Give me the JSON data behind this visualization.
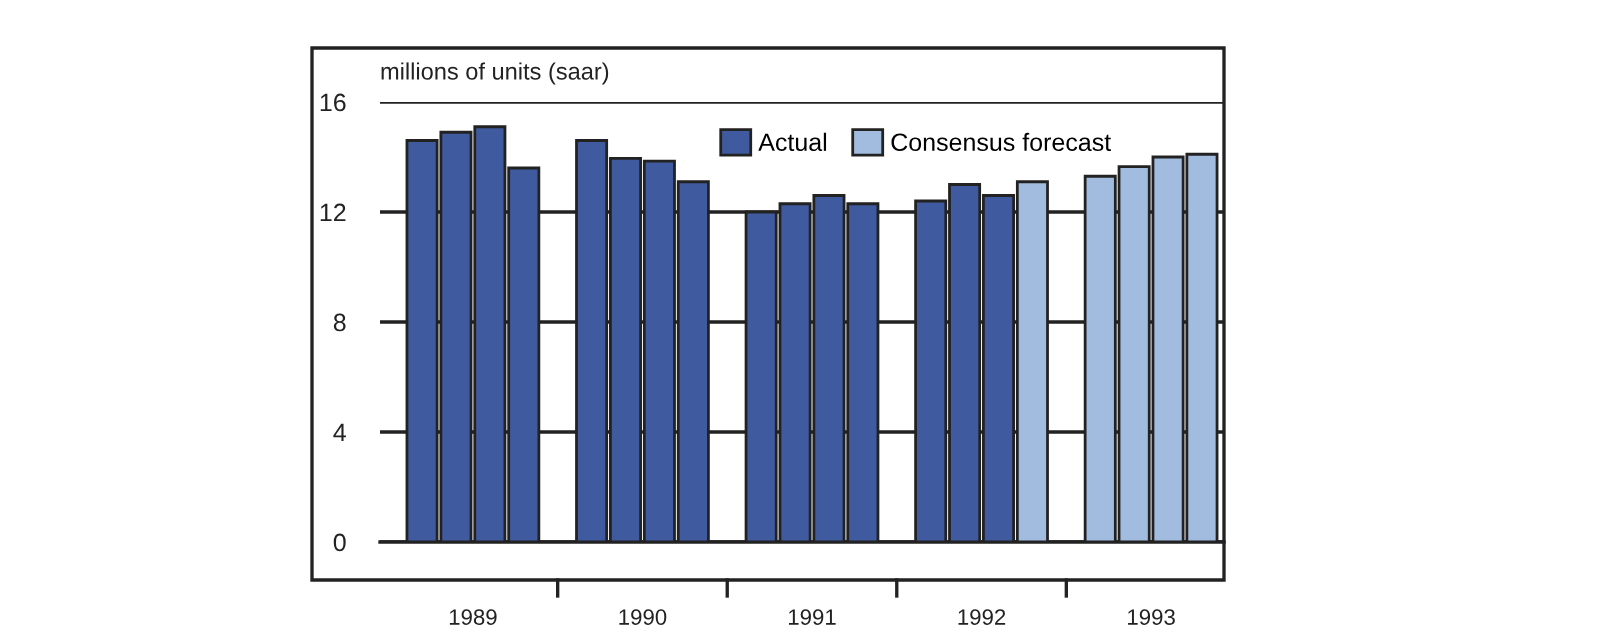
{
  "chart_data": {
    "type": "bar",
    "ylabel": "millions of units (saar)",
    "categories": [
      null,
      "1989",
      null,
      null,
      null,
      null,
      "1990",
      null,
      null,
      null,
      null,
      "1991",
      null,
      null,
      null,
      null,
      "1992",
      null,
      null,
      null,
      null,
      "1993",
      null,
      null
    ],
    "series": [
      {
        "name": "Actual",
        "color": "#3f5a9f",
        "values": [
          14.6,
          14.9,
          15.1,
          13.6,
          null,
          14.6,
          13.95,
          13.85,
          13.1,
          null,
          12.0,
          12.3,
          12.6,
          12.3,
          null,
          12.4,
          13.0,
          12.6,
          null,
          null,
          null,
          null,
          null,
          null
        ]
      },
      {
        "name": "Consensus forecast",
        "color": "#a2bce0",
        "values": [
          null,
          null,
          null,
          null,
          null,
          null,
          null,
          null,
          null,
          null,
          null,
          null,
          null,
          null,
          null,
          null,
          null,
          null,
          13.1,
          null,
          13.3,
          13.65,
          14.0,
          14.1
        ]
      }
    ],
    "ylim": [
      0,
      16
    ],
    "yticks": [
      0,
      4,
      8,
      12,
      16
    ],
    "grid": "y",
    "legend": "top"
  }
}
